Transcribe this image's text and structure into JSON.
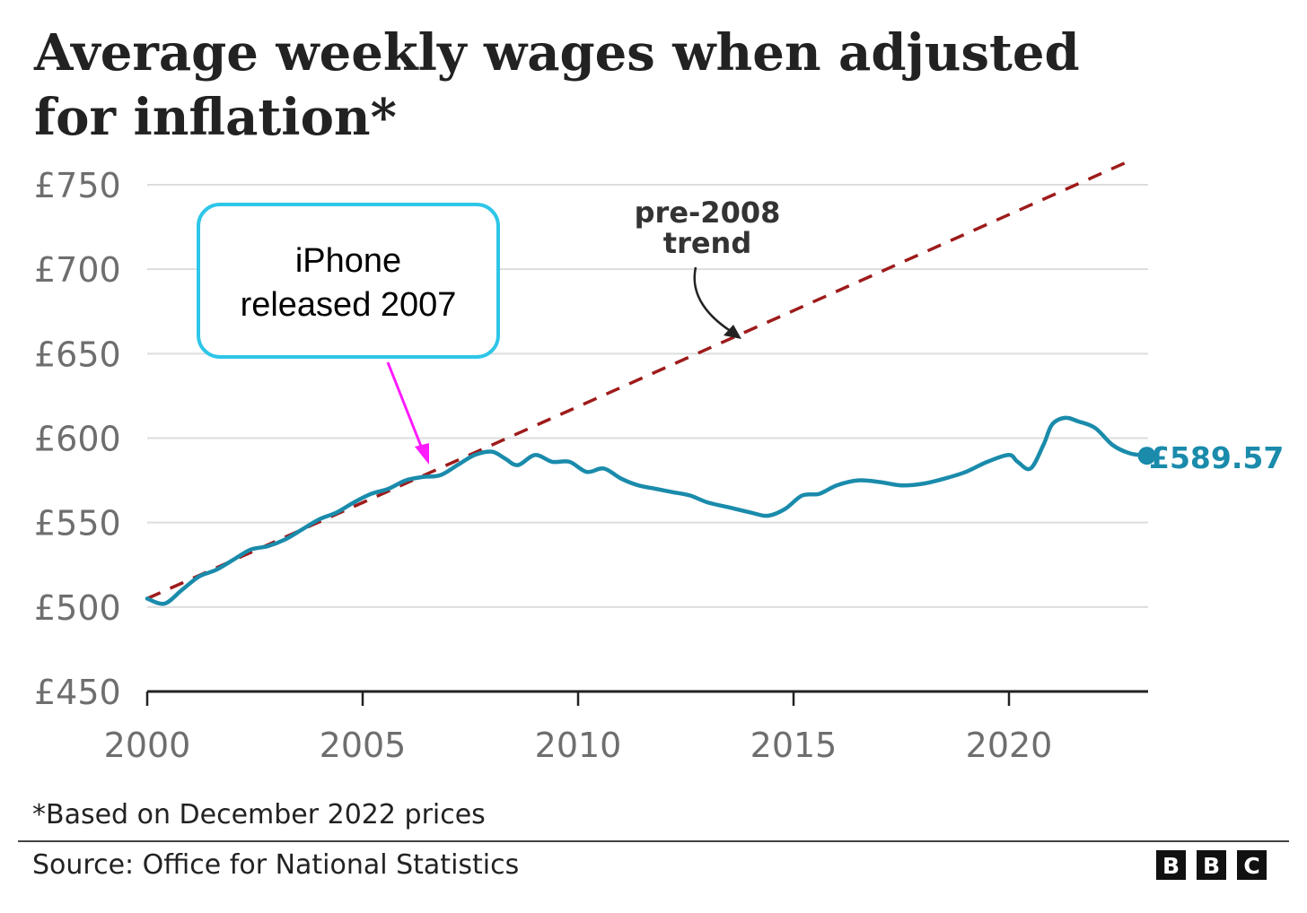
{
  "chart_data": {
    "type": "line",
    "title_lines": [
      "Average weekly wages when adjusted",
      "for inflation*"
    ],
    "ylim": [
      450,
      750
    ],
    "y_ticks": [
      750,
      700,
      650,
      600,
      550,
      500,
      450
    ],
    "y_tick_labels": [
      "£750",
      "£700",
      "£650",
      "£600",
      "£550",
      "£500",
      "£450"
    ],
    "xlim": [
      2000,
      2023.8
    ],
    "x_ticks": [
      2000,
      2005,
      2010,
      2015,
      2020
    ],
    "x_tick_labels": [
      "2000",
      "2005",
      "2010",
      "2015",
      "2020"
    ],
    "series": [
      {
        "name": "Average weekly wages",
        "color": "#1a8bab",
        "x": [
          2000.0,
          2000.4,
          2000.8,
          2001.2,
          2001.6,
          2002.0,
          2002.4,
          2002.8,
          2003.2,
          2003.6,
          2004.0,
          2004.4,
          2004.8,
          2005.2,
          2005.6,
          2006.0,
          2006.4,
          2006.8,
          2007.2,
          2007.6,
          2008.0,
          2008.3,
          2008.6,
          2009.0,
          2009.4,
          2009.8,
          2010.2,
          2010.6,
          2011.0,
          2011.4,
          2011.8,
          2012.2,
          2012.6,
          2013.0,
          2013.5,
          2014.0,
          2014.4,
          2014.8,
          2015.2,
          2015.6,
          2016.0,
          2016.5,
          2017.0,
          2017.5,
          2018.0,
          2018.5,
          2019.0,
          2019.5,
          2020.0,
          2020.2,
          2020.5,
          2020.8,
          2021.0,
          2021.3,
          2021.6,
          2022.0,
          2022.4,
          2022.8,
          2023.2
        ],
        "values": [
          505,
          502,
          510,
          518,
          522,
          528,
          534,
          536,
          540,
          546,
          552,
          556,
          562,
          567,
          570,
          575,
          577,
          578,
          584,
          590,
          592,
          588,
          584,
          590,
          586,
          586,
          580,
          582,
          576,
          572,
          570,
          568,
          566,
          562,
          559,
          556,
          554,
          558,
          566,
          567,
          572,
          575,
          574,
          572,
          573,
          576,
          580,
          586,
          590,
          586,
          582,
          596,
          608,
          612,
          610,
          606,
          596,
          591,
          589.57
        ]
      },
      {
        "name": "pre-2008 trend",
        "color": "#9e1b1b",
        "style": "dashed",
        "x": [
          2000,
          2022.7
        ],
        "values": [
          505,
          763
        ]
      }
    ],
    "annotations": {
      "trend_label_lines": [
        "pre-2008",
        "trend"
      ],
      "end_value_label": "£589.57",
      "callout_lines": [
        "iPhone",
        "released 2007"
      ]
    }
  },
  "footnote": "*Based on December 2022 prices",
  "source": "Source: Office for National Statistics",
  "brand_letters": [
    "B",
    "B",
    "C"
  ],
  "colors": {
    "line": "#1a8bab",
    "trend": "#9e1b1b",
    "callout_border": "#2ec6e8",
    "callout_arrow": "#ff1aff",
    "grid": "#dddddd",
    "axis": "#222222"
  }
}
